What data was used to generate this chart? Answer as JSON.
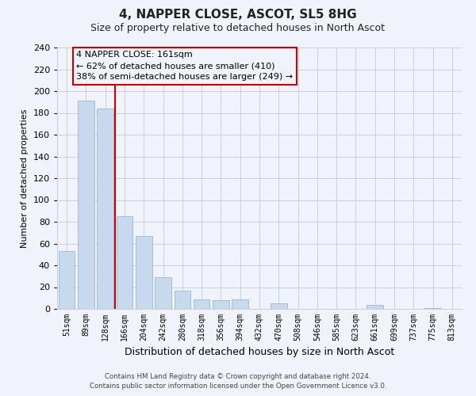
{
  "title": "4, NAPPER CLOSE, ASCOT, SL5 8HG",
  "subtitle": "Size of property relative to detached houses in North Ascot",
  "xlabel": "Distribution of detached houses by size in North Ascot",
  "ylabel": "Number of detached properties",
  "bar_labels": [
    "51sqm",
    "89sqm",
    "128sqm",
    "166sqm",
    "204sqm",
    "242sqm",
    "280sqm",
    "318sqm",
    "356sqm",
    "394sqm",
    "432sqm",
    "470sqm",
    "508sqm",
    "546sqm",
    "585sqm",
    "623sqm",
    "661sqm",
    "699sqm",
    "737sqm",
    "775sqm",
    "813sqm"
  ],
  "bar_values": [
    53,
    191,
    184,
    85,
    67,
    29,
    17,
    9,
    8,
    9,
    0,
    5,
    0,
    0,
    0,
    0,
    4,
    0,
    0,
    1,
    0
  ],
  "bar_color": "#c8d9ee",
  "bar_edge_color": "#9ab5d5",
  "property_line_color": "#cc0000",
  "property_line_index": 3,
  "ylim": [
    0,
    240
  ],
  "yticks": [
    0,
    20,
    40,
    60,
    80,
    100,
    120,
    140,
    160,
    180,
    200,
    220,
    240
  ],
  "annotation_title": "4 NAPPER CLOSE: 161sqm",
  "annotation_line1": "← 62% of detached houses are smaller (410)",
  "annotation_line2": "38% of semi-detached houses are larger (249) →",
  "footer_line1": "Contains HM Land Registry data © Crown copyright and database right 2024.",
  "footer_line2": "Contains public sector information licensed under the Open Government Licence v3.0.",
  "background_color": "#f0f4fa",
  "grid_color": "#c8d0dc",
  "title_fontsize": 11,
  "subtitle_fontsize": 9,
  "annotation_box_color": "#cc0000"
}
